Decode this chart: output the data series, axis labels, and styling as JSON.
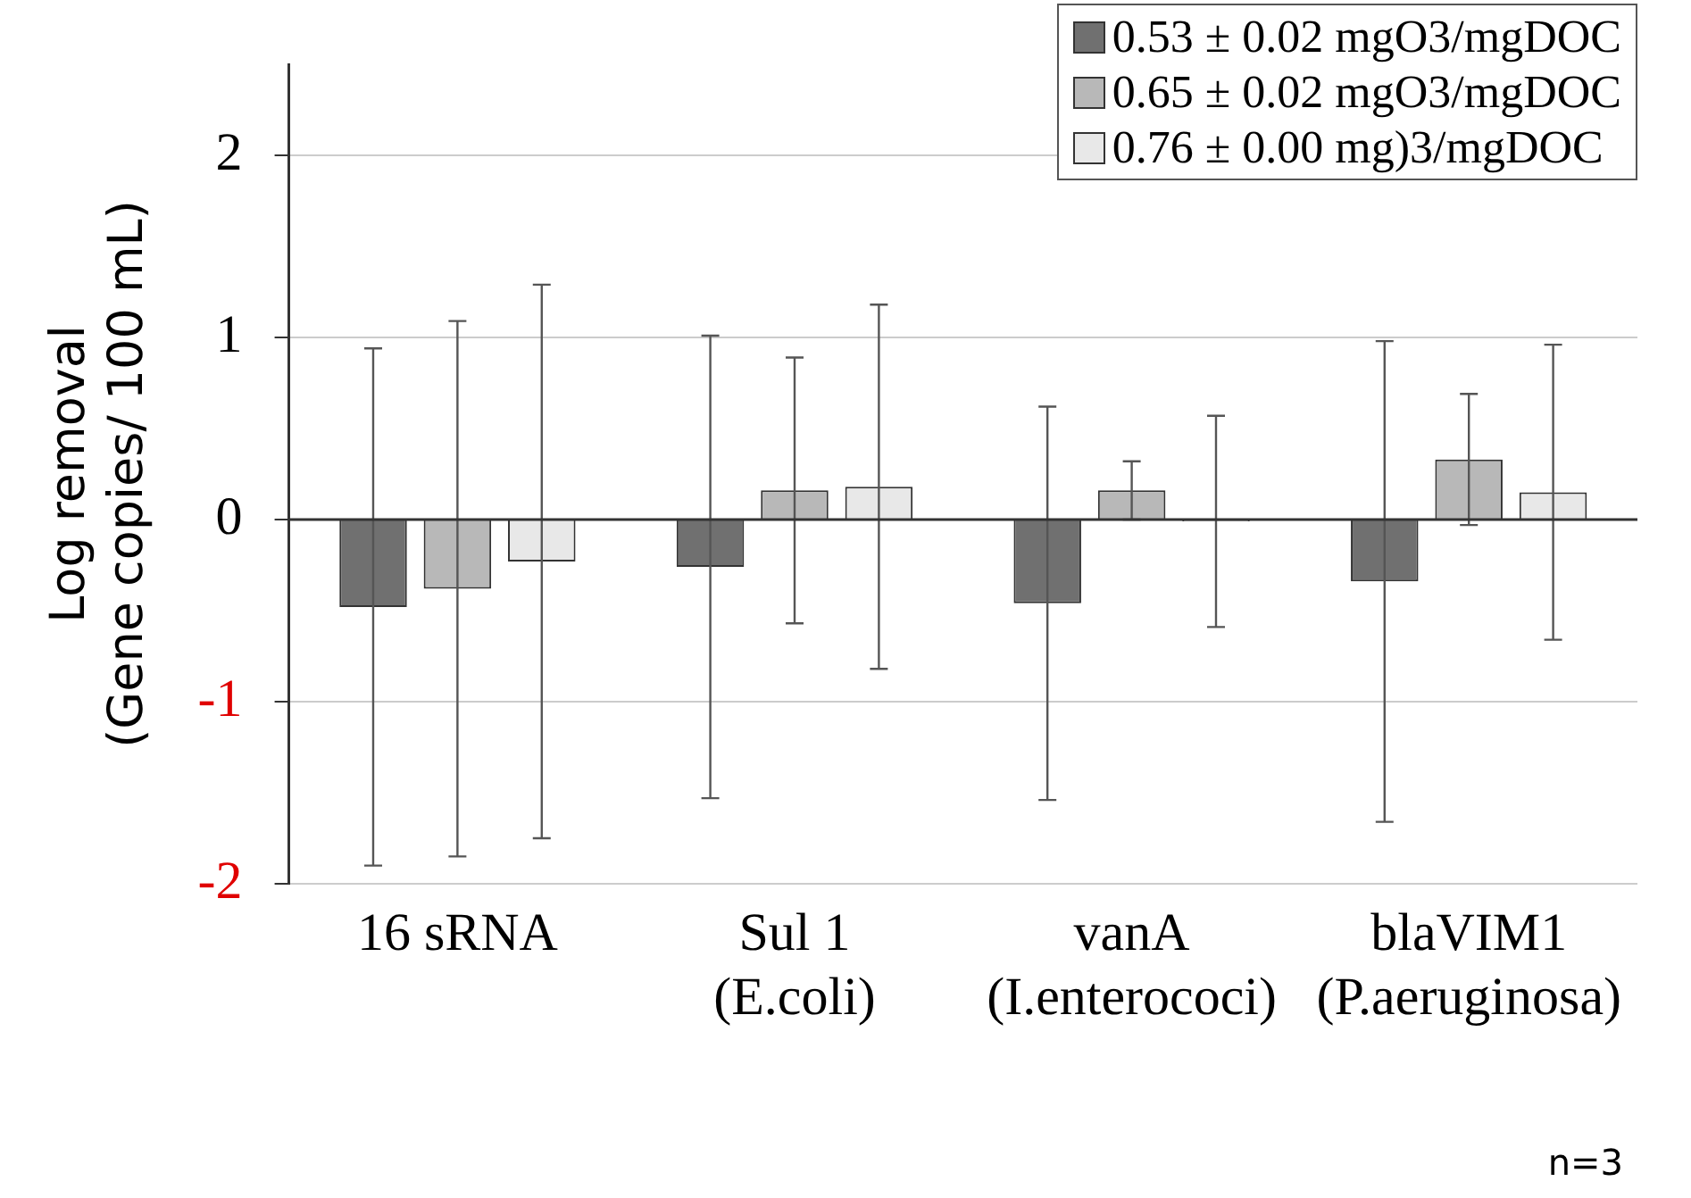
{
  "chart_data": {
    "type": "bar",
    "ylabel": "Log removal\n(Gene copies/ 100 mL)",
    "categories": [
      "16 sRNA",
      "Sul 1\n(E.coli)",
      "vanA\n(I.enterococi)",
      "blaVIM1\n(P.aeruginosa)"
    ],
    "series": [
      {
        "name": "0.53 ± 0.02 mgO3/mgDOC",
        "color": "#707070",
        "values": [
          -0.48,
          -0.26,
          -0.46,
          -0.34
        ],
        "errors": [
          1.42,
          1.27,
          1.08,
          1.32
        ]
      },
      {
        "name": "0.65 ± 0.02 mgO3/mgDOC",
        "color": "#b8b8b8",
        "values": [
          -0.38,
          0.16,
          0.16,
          0.33
        ],
        "errors": [
          1.47,
          0.73,
          0.16,
          0.36
        ]
      },
      {
        "name": "0.76 ± 0.00 mg)3/mgDOC",
        "color": "#e8e8e8",
        "values": [
          -0.23,
          0.18,
          -0.01,
          0.15
        ],
        "errors": [
          1.52,
          1.0,
          0.58,
          0.81
        ]
      }
    ],
    "ylim": [
      -2,
      2.5
    ],
    "yticks": [
      -2,
      -1,
      0,
      1,
      2
    ],
    "grid": "y",
    "legend": "top right",
    "annotations": [
      "n=3"
    ]
  }
}
